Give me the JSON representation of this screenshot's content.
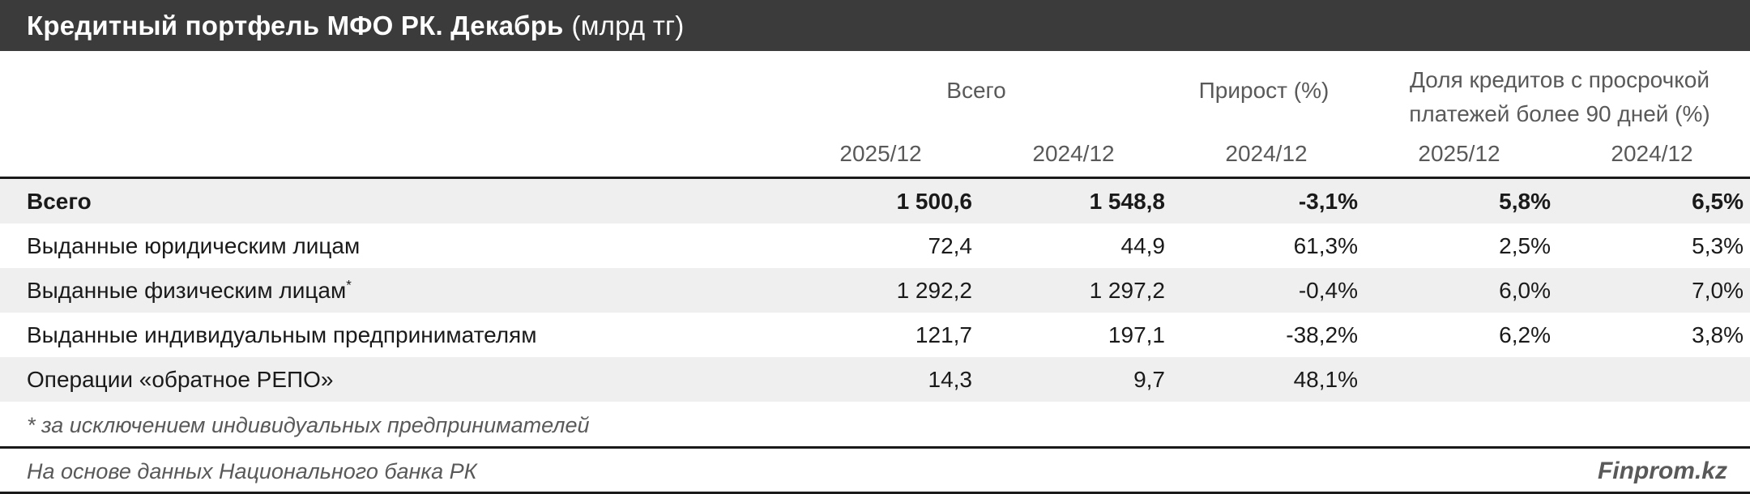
{
  "title": {
    "bold": "Кредитный портфель МФО РК. Декабрь",
    "unit": "(млрд тг)"
  },
  "header": {
    "group_total": "Всего",
    "group_growth": "Прирост (%)",
    "group_overdue_line1": "Доля кредитов с просрочкой",
    "group_overdue_line2": "платежей более 90 дней (%)",
    "sub": [
      "2025/12",
      "2024/12",
      "2024/12",
      "2025/12",
      "2024/12"
    ]
  },
  "rows": [
    {
      "label": "Всего",
      "v1": "1 500,6",
      "v2": "1 548,8",
      "v3": "-3,1%",
      "v4": "5,8%",
      "v5": "6,5%"
    },
    {
      "label": "Выданные юридическим лицам",
      "v1": "72,4",
      "v2": "44,9",
      "v3": "61,3%",
      "v4": "2,5%",
      "v5": "5,3%"
    },
    {
      "label": "Выданные физическим лицам",
      "mark": "*",
      "v1": "1 292,2",
      "v2": "1 297,2",
      "v3": "-0,4%",
      "v4": "6,0%",
      "v5": "7,0%"
    },
    {
      "label": "Выданные индивидуальным предпринимателям",
      "v1": "121,7",
      "v2": "197,1",
      "v3": "-38,2%",
      "v4": "6,2%",
      "v5": "3,8%"
    },
    {
      "label": "Операции «обратное РЕПО»",
      "v1": "14,3",
      "v2": "9,7",
      "v3": "48,1%",
      "v4": "",
      "v5": ""
    }
  ],
  "footnote": "* за исключением индивидуальных предпринимателей",
  "source": "На основе данных Национального банка РК",
  "brand": "Finprom.kz"
}
